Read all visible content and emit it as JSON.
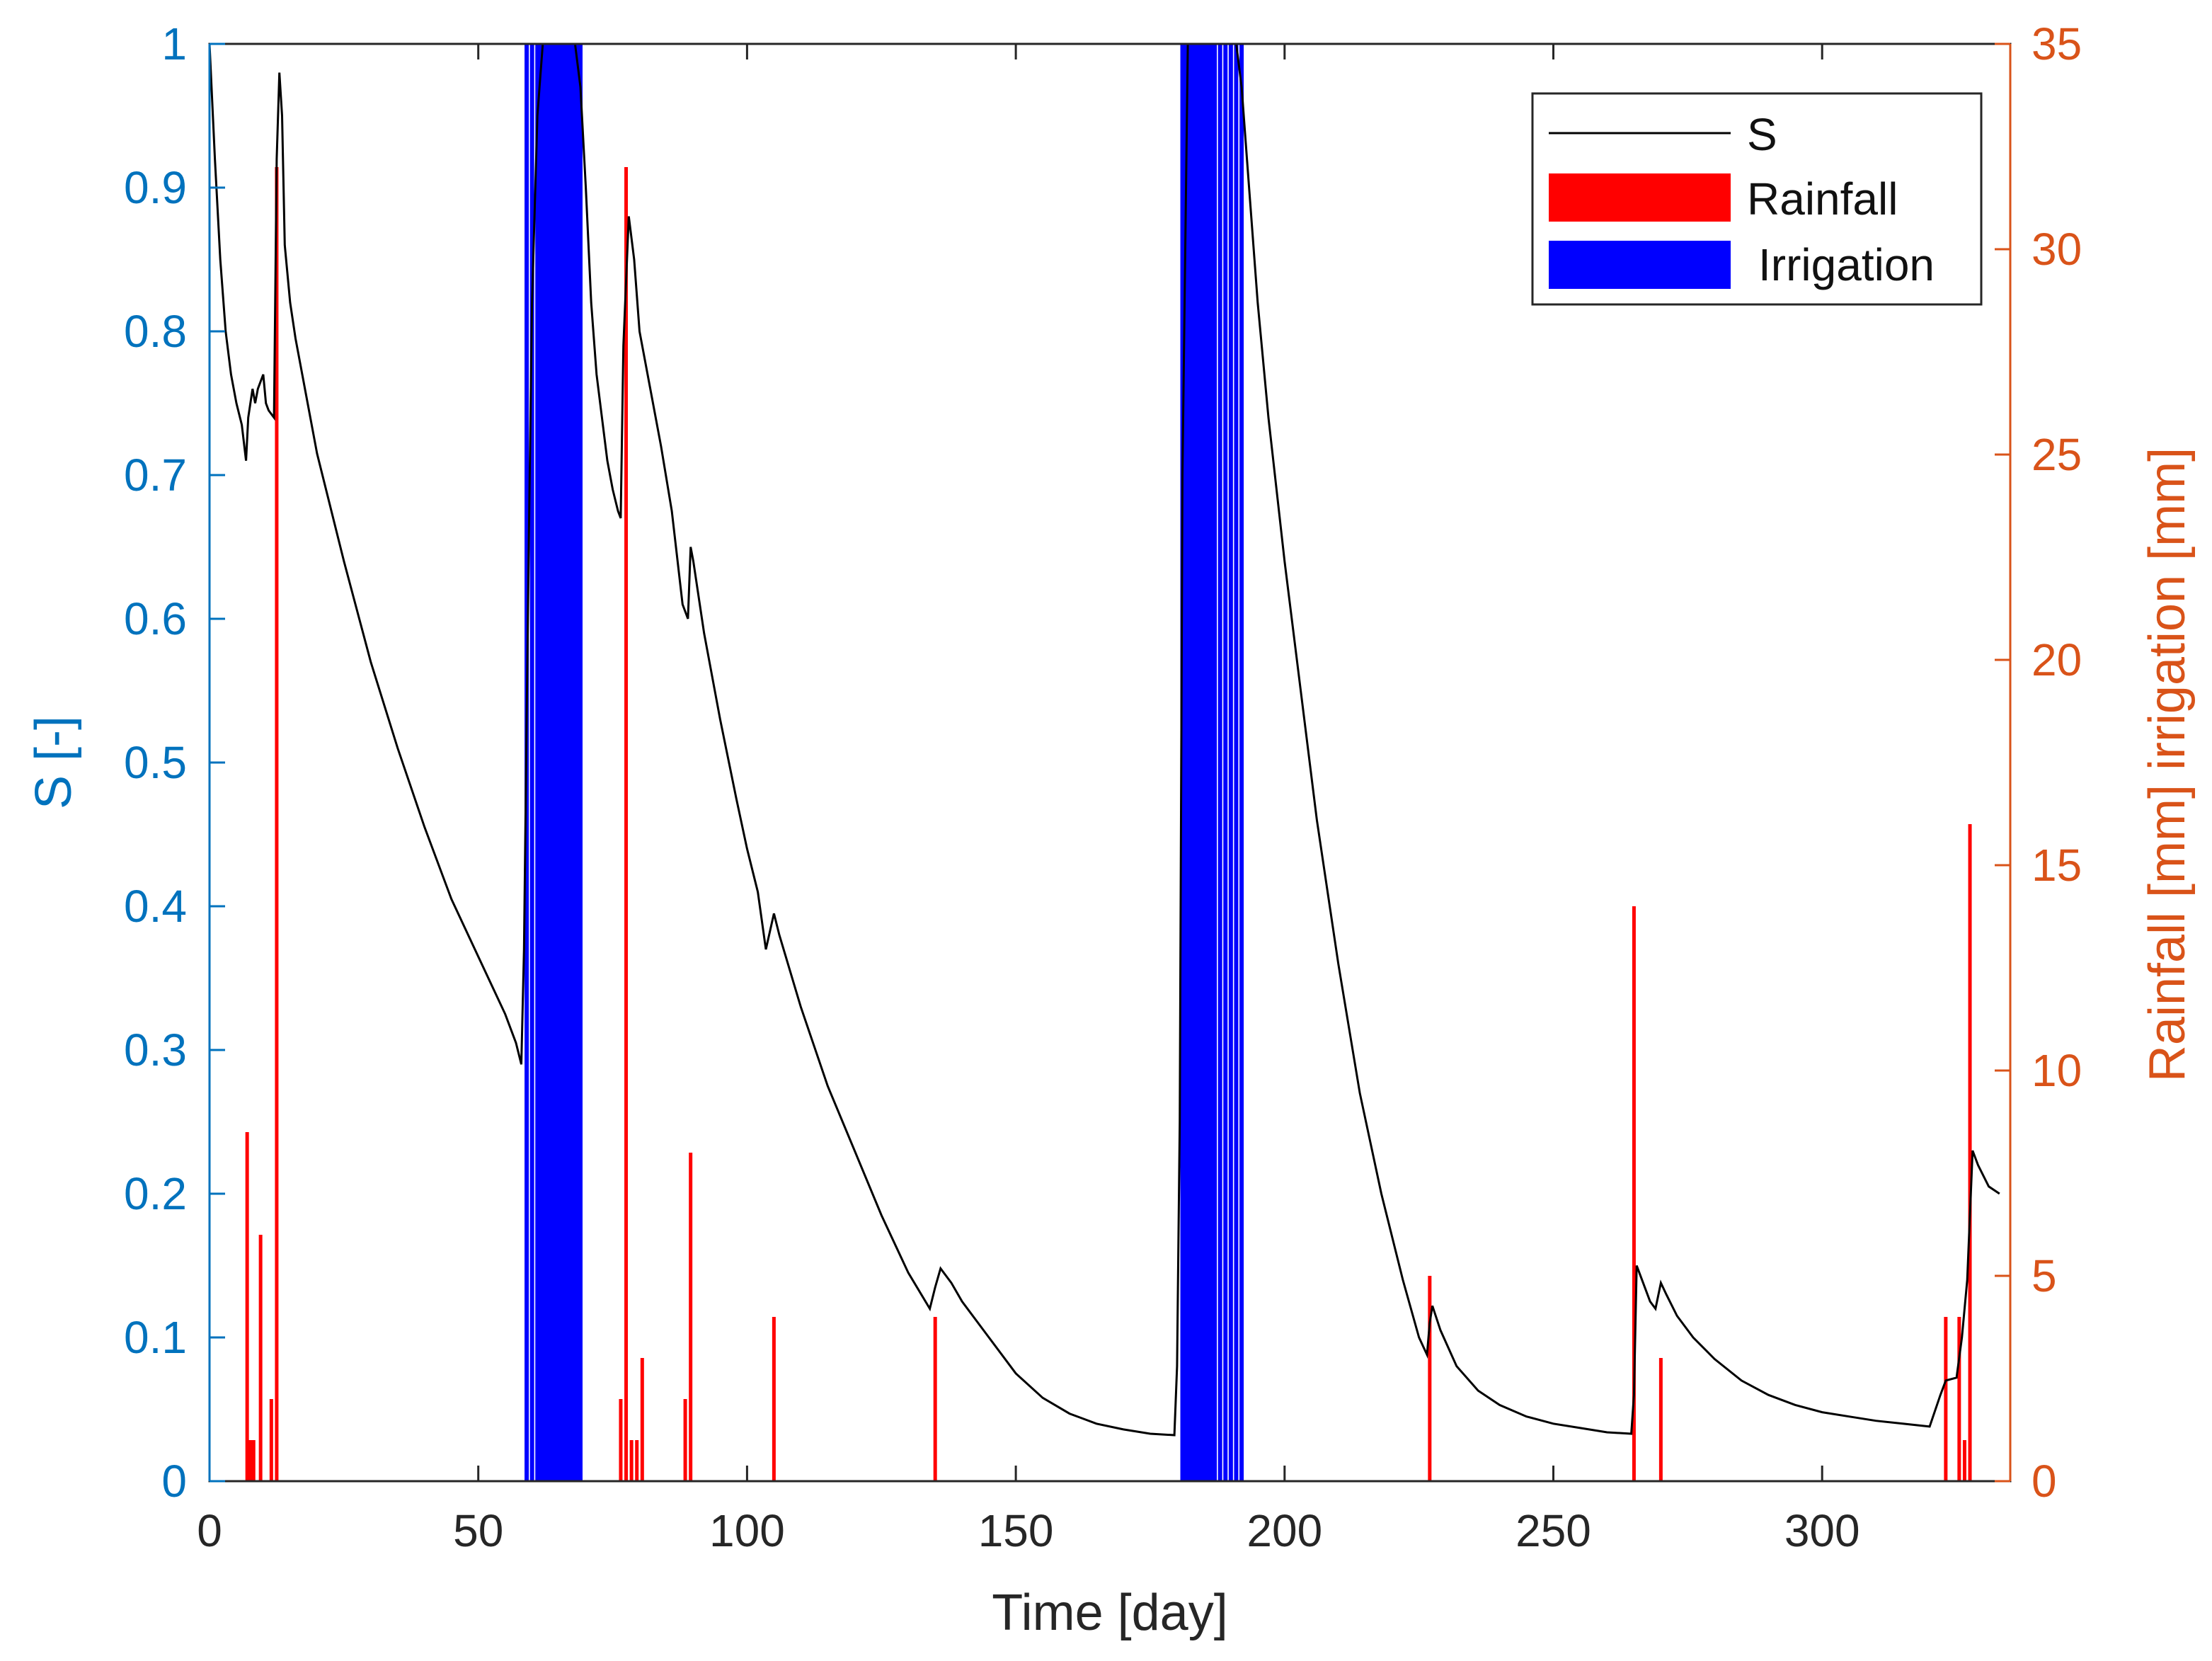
{
  "chart_data": {
    "type": "bar",
    "title": "",
    "xlabel": "Time [day]",
    "ylabel_left": "S [-]",
    "ylabel_right": "Rainfall [mm] irrigation [mm]",
    "xlim": [
      0,
      335
    ],
    "ylim_left": [
      0,
      1
    ],
    "ylim_right": [
      0,
      35
    ],
    "x_ticks": [
      0,
      50,
      100,
      150,
      200,
      250,
      300
    ],
    "y_ticks_left": [
      0,
      0.1,
      0.2,
      0.3,
      0.4,
      0.5,
      0.6,
      0.7,
      0.8,
      0.9,
      1
    ],
    "y_ticks_right": [
      0,
      5,
      10,
      15,
      20,
      25,
      30,
      35
    ],
    "colors": {
      "s_line": "#000000",
      "rainfall": "#ff0000",
      "irrigation": "#0000ff",
      "left_axis": "#0072bd",
      "right_axis": "#d95319",
      "frame": "#262626"
    },
    "legend": {
      "position": "top-right",
      "entries": [
        "S",
        "Rainfall",
        "Irrigation"
      ]
    },
    "series": [
      {
        "name": "S",
        "kind": "line",
        "axis": "left",
        "points": [
          [
            0,
            1.0
          ],
          [
            0.5,
            0.96
          ],
          [
            1,
            0.92
          ],
          [
            2,
            0.85
          ],
          [
            3,
            0.8
          ],
          [
            4,
            0.77
          ],
          [
            5,
            0.75
          ],
          [
            6,
            0.735
          ],
          [
            6.8,
            0.71
          ],
          [
            7.2,
            0.74
          ],
          [
            8,
            0.76
          ],
          [
            8.5,
            0.75
          ],
          [
            9,
            0.76
          ],
          [
            10,
            0.77
          ],
          [
            10.5,
            0.75
          ],
          [
            11,
            0.745
          ],
          [
            12,
            0.74
          ],
          [
            12.5,
            0.92
          ],
          [
            13,
            0.98
          ],
          [
            13.5,
            0.95
          ],
          [
            14,
            0.86
          ],
          [
            15,
            0.82
          ],
          [
            16,
            0.795
          ],
          [
            18,
            0.755
          ],
          [
            20,
            0.715
          ],
          [
            25,
            0.64
          ],
          [
            30,
            0.57
          ],
          [
            35,
            0.51
          ],
          [
            40,
            0.455
          ],
          [
            45,
            0.405
          ],
          [
            50,
            0.365
          ],
          [
            55,
            0.325
          ],
          [
            57,
            0.305
          ],
          [
            58,
            0.29
          ],
          [
            58.5,
            0.37
          ],
          [
            59,
            0.53
          ],
          [
            59.5,
            0.68
          ],
          [
            60,
            0.82
          ],
          [
            61,
            0.95
          ],
          [
            62,
            1.0
          ],
          [
            68,
            1.0
          ],
          [
            69,
            0.97
          ],
          [
            70,
            0.9
          ],
          [
            71,
            0.82
          ],
          [
            72,
            0.77
          ],
          [
            73,
            0.74
          ],
          [
            74,
            0.71
          ],
          [
            75,
            0.69
          ],
          [
            76,
            0.675
          ],
          [
            76.5,
            0.67
          ],
          [
            77,
            0.79
          ],
          [
            78,
            0.88
          ],
          [
            79,
            0.85
          ],
          [
            80,
            0.8
          ],
          [
            82,
            0.76
          ],
          [
            84,
            0.72
          ],
          [
            86,
            0.675
          ],
          [
            88,
            0.61
          ],
          [
            89,
            0.6
          ],
          [
            89.5,
            0.65
          ],
          [
            90,
            0.64
          ],
          [
            92,
            0.59
          ],
          [
            95,
            0.53
          ],
          [
            98,
            0.475
          ],
          [
            100,
            0.44
          ],
          [
            102,
            0.41
          ],
          [
            103.5,
            0.37
          ],
          [
            105,
            0.395
          ],
          [
            106,
            0.38
          ],
          [
            110,
            0.33
          ],
          [
            115,
            0.275
          ],
          [
            120,
            0.23
          ],
          [
            125,
            0.185
          ],
          [
            130,
            0.145
          ],
          [
            134,
            0.12
          ],
          [
            135,
            0.135
          ],
          [
            136,
            0.148
          ],
          [
            138,
            0.138
          ],
          [
            140,
            0.125
          ],
          [
            145,
            0.1
          ],
          [
            150,
            0.075
          ],
          [
            155,
            0.058
          ],
          [
            160,
            0.047
          ],
          [
            165,
            0.04
          ],
          [
            170,
            0.036
          ],
          [
            175,
            0.033
          ],
          [
            179.5,
            0.032
          ],
          [
            180,
            0.08
          ],
          [
            180.5,
            0.25
          ],
          [
            181,
            0.7
          ],
          [
            182,
            1.0
          ],
          [
            191,
            1.0
          ],
          [
            192,
            0.97
          ],
          [
            193,
            0.92
          ],
          [
            195,
            0.82
          ],
          [
            197,
            0.74
          ],
          [
            200,
            0.64
          ],
          [
            203,
            0.55
          ],
          [
            206,
            0.46
          ],
          [
            210,
            0.36
          ],
          [
            214,
            0.27
          ],
          [
            218,
            0.2
          ],
          [
            222,
            0.14
          ],
          [
            225,
            0.1
          ],
          [
            226.5,
            0.088
          ],
          [
            227,
            0.11
          ],
          [
            227.5,
            0.122
          ],
          [
            229,
            0.105
          ],
          [
            232,
            0.08
          ],
          [
            236,
            0.063
          ],
          [
            240,
            0.053
          ],
          [
            245,
            0.045
          ],
          [
            250,
            0.04
          ],
          [
            255,
            0.037
          ],
          [
            260,
            0.034
          ],
          [
            264.5,
            0.033
          ],
          [
            265,
            0.06
          ],
          [
            265.5,
            0.15
          ],
          [
            266,
            0.145
          ],
          [
            268,
            0.125
          ],
          [
            269,
            0.12
          ],
          [
            270,
            0.138
          ],
          [
            271,
            0.13
          ],
          [
            273,
            0.115
          ],
          [
            276,
            0.1
          ],
          [
            280,
            0.085
          ],
          [
            285,
            0.07
          ],
          [
            290,
            0.06
          ],
          [
            295,
            0.053
          ],
          [
            300,
            0.048
          ],
          [
            305,
            0.045
          ],
          [
            310,
            0.042
          ],
          [
            315,
            0.04
          ],
          [
            320,
            0.038
          ],
          [
            322,
            0.06
          ],
          [
            323,
            0.07
          ],
          [
            325,
            0.072
          ],
          [
            326,
            0.1
          ],
          [
            327,
            0.14
          ],
          [
            328,
            0.23
          ],
          [
            329,
            0.22
          ],
          [
            331,
            0.205
          ],
          [
            333,
            0.2
          ]
        ]
      },
      {
        "name": "Rainfall",
        "kind": "bar",
        "axis": "right",
        "x": [
          7,
          7.6,
          8.2,
          9.5,
          11.5,
          12.5,
          76.5,
          77.5,
          78.5,
          79.5,
          80.5,
          88.5,
          89.5,
          105,
          135,
          227,
          265,
          270,
          323,
          325.5,
          326.5,
          327.5
        ],
        "values": [
          8.5,
          1,
          1,
          6,
          2,
          32,
          2,
          32,
          1,
          1,
          3,
          2,
          8,
          4,
          4,
          5,
          14,
          3,
          4,
          4,
          1,
          16
        ]
      },
      {
        "name": "Irrigation",
        "kind": "bar",
        "axis": "right",
        "x": [
          59,
          60,
          61,
          61.5,
          62,
          62.5,
          63,
          63.5,
          64,
          64.5,
          65,
          65.5,
          66,
          66.5,
          67,
          67.5,
          68,
          68.5,
          69,
          181,
          181.5,
          182,
          182.5,
          183,
          183.5,
          184,
          184.5,
          185,
          185.5,
          186,
          186.5,
          187,
          188,
          189,
          190,
          191,
          192
        ],
        "values": [
          35,
          35,
          35,
          35,
          35,
          35,
          35,
          35,
          35,
          35,
          35,
          35,
          35,
          35,
          35,
          35,
          35,
          35,
          35,
          35,
          35,
          35,
          35,
          35,
          35,
          35,
          35,
          35,
          35,
          35,
          35,
          35,
          35,
          35,
          35,
          35,
          35
        ]
      }
    ]
  }
}
